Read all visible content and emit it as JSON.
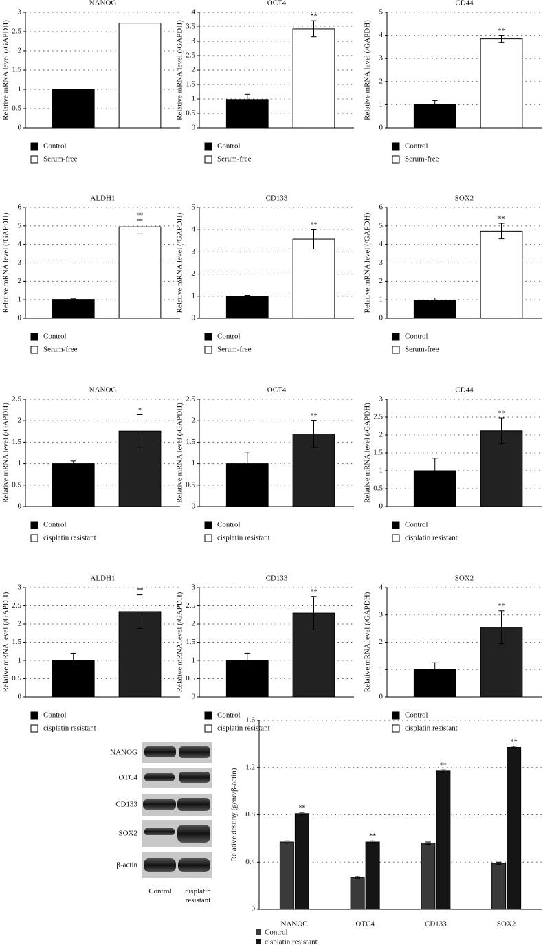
{
  "chart_data": [
    {
      "type": "bar",
      "title": "NANOG",
      "y_label": "Relative mRNA level (/GAPDH)",
      "categories": [
        null
      ],
      "ylim": [
        0,
        3
      ],
      "yticks": [
        0,
        0.5,
        1,
        1.5,
        2,
        2.5,
        3
      ],
      "grid": true,
      "legend": "bottom-left",
      "series": [
        {
          "name": "Control",
          "color": "#000000",
          "legend_color": "#000000",
          "values": [
            1
          ]
        },
        {
          "name": "Serum-free",
          "color": "#ffffff",
          "legend_color": "#ffffff",
          "values": [
            2.72
          ]
        }
      ]
    },
    {
      "type": "bar",
      "title": "OCT4",
      "y_label": "Relative mRNA level (/GAPDH)",
      "categories": [
        null
      ],
      "ylim": [
        0,
        4
      ],
      "yticks": [
        0,
        0.5,
        1,
        1.5,
        2,
        2.5,
        3,
        3.5,
        4
      ],
      "grid": true,
      "legend": "bottom-left",
      "series": [
        {
          "name": "Control",
          "color": "#000000",
          "legend_color": "#000000",
          "values": [
            0.98
          ],
          "errors": [
            0.18
          ]
        },
        {
          "name": "Serum-free",
          "color": "#ffffff",
          "legend_color": "#ffffff",
          "values": [
            3.43
          ],
          "errors": [
            0.28
          ],
          "significance": [
            "**"
          ]
        }
      ]
    },
    {
      "type": "bar",
      "title": "CD44",
      "y_label": "Relative mRNA level (/GAPDH)",
      "categories": [
        null
      ],
      "ylim": [
        0,
        5
      ],
      "yticks": [
        0,
        1,
        2,
        3,
        4,
        5
      ],
      "grid": true,
      "legend": "bottom-left",
      "series": [
        {
          "name": "Control",
          "color": "#000000",
          "legend_color": "#000000",
          "values": [
            1
          ],
          "errors": [
            0.18
          ]
        },
        {
          "name": "Serum-free",
          "color": "#ffffff",
          "legend_color": "#ffffff",
          "values": [
            3.85
          ],
          "errors": [
            0.15
          ],
          "significance": [
            "**"
          ]
        }
      ]
    },
    {
      "type": "bar",
      "title": "ALDH1",
      "y_label": "Relative mRNA level (/GAPDH)",
      "categories": [
        null
      ],
      "ylim": [
        0,
        6
      ],
      "yticks": [
        0,
        1,
        2,
        3,
        4,
        5,
        6
      ],
      "grid": true,
      "legend": "bottom-left",
      "series": [
        {
          "name": "Control",
          "color": "#000000",
          "legend_color": "#000000",
          "values": [
            1.02
          ],
          "errors": [
            0.03
          ]
        },
        {
          "name": "Serum-free",
          "color": "#ffffff",
          "legend_color": "#ffffff",
          "values": [
            4.95
          ],
          "errors": [
            0.38
          ],
          "significance": [
            "**"
          ]
        }
      ]
    },
    {
      "type": "bar",
      "title": "CD133",
      "y_label": "Relative mRNA level (/GAPDH)",
      "categories": [
        null
      ],
      "ylim": [
        0,
        5
      ],
      "yticks": [
        0,
        1,
        2,
        3,
        4,
        5
      ],
      "grid": true,
      "legend": "bottom-left",
      "series": [
        {
          "name": "Control",
          "color": "#000000",
          "legend_color": "#000000",
          "values": [
            1
          ],
          "errors": [
            0.04
          ]
        },
        {
          "name": "Serum-free",
          "color": "#ffffff",
          "legend_color": "#ffffff",
          "values": [
            3.57
          ],
          "errors": [
            0.45
          ],
          "significance": [
            "**"
          ]
        }
      ]
    },
    {
      "type": "bar",
      "title": "SOX2",
      "y_label": "Relative mRNA level (/GAPDH)",
      "categories": [
        null
      ],
      "ylim": [
        0,
        6
      ],
      "yticks": [
        0,
        1,
        2,
        3,
        4,
        5,
        6
      ],
      "grid": true,
      "legend": "bottom-left",
      "series": [
        {
          "name": "Control",
          "color": "#000000",
          "legend_color": "#000000",
          "values": [
            0.98
          ],
          "errors": [
            0.12
          ]
        },
        {
          "name": "Serum-free",
          "color": "#ffffff",
          "legend_color": "#ffffff",
          "values": [
            4.72
          ],
          "errors": [
            0.42
          ],
          "significance": [
            "**"
          ]
        }
      ]
    },
    {
      "type": "bar",
      "title": "NANOG",
      "y_label": "Relative mRNA level (/GAPDH)",
      "categories": [
        null
      ],
      "ylim": [
        0,
        2.5
      ],
      "yticks": [
        0,
        0.5,
        1,
        1.5,
        2,
        2.5
      ],
      "grid": true,
      "legend": "bottom-left",
      "series": [
        {
          "name": "Control",
          "color": "#000000",
          "legend_color": "#000000",
          "values": [
            1
          ],
          "errors": [
            0.06
          ]
        },
        {
          "name": "cisplatin resistant",
          "color": "#222222",
          "legend_color": "#ffffff",
          "values": [
            1.76
          ],
          "errors": [
            0.38
          ],
          "significance": [
            "*"
          ]
        }
      ]
    },
    {
      "type": "bar",
      "title": "OCT4",
      "y_label": "Relative mRNA level (/GAPDH)",
      "categories": [
        null
      ],
      "ylim": [
        0,
        2.5
      ],
      "yticks": [
        0,
        0.5,
        1,
        1.5,
        2,
        2.5
      ],
      "grid": true,
      "legend": "bottom-left",
      "series": [
        {
          "name": "Control",
          "color": "#000000",
          "legend_color": "#000000",
          "values": [
            1
          ],
          "errors": [
            0.27
          ]
        },
        {
          "name": "cisplatin resistant",
          "color": "#222222",
          "legend_color": "#ffffff",
          "values": [
            1.69
          ],
          "errors": [
            0.32
          ],
          "significance": [
            "**"
          ]
        }
      ]
    },
    {
      "type": "bar",
      "title": "CD44",
      "y_label": "Relative mRNA level (/GAPDH)",
      "categories": [
        null
      ],
      "ylim": [
        0,
        3
      ],
      "yticks": [
        0,
        0.5,
        1,
        1.5,
        2,
        2.5,
        3
      ],
      "grid": true,
      "legend": "bottom-left",
      "series": [
        {
          "name": "Control",
          "color": "#000000",
          "legend_color": "#000000",
          "values": [
            1
          ],
          "errors": [
            0.35
          ]
        },
        {
          "name": "cisplatin resistant",
          "color": "#222222",
          "legend_color": "#ffffff",
          "values": [
            2.12
          ],
          "errors": [
            0.36
          ],
          "significance": [
            "**"
          ]
        }
      ]
    },
    {
      "type": "bar",
      "title": "ALDH1",
      "y_label": "Relative mRNA level (/GAPDH)",
      "categories": [
        null
      ],
      "ylim": [
        0,
        3
      ],
      "yticks": [
        0,
        0.5,
        1,
        1.5,
        2,
        2.5,
        3
      ],
      "grid": true,
      "legend": "bottom-left",
      "series": [
        {
          "name": "Control",
          "color": "#000000",
          "legend_color": "#000000",
          "values": [
            1
          ],
          "errors": [
            0.2
          ]
        },
        {
          "name": "cisplatin resistant",
          "color": "#222222",
          "legend_color": "#ffffff",
          "values": [
            2.34
          ],
          "errors": [
            0.46
          ],
          "significance": [
            "**"
          ]
        }
      ]
    },
    {
      "type": "bar",
      "title": "CD133",
      "y_label": "Relative mRNA level (/GAPDH)",
      "categories": [
        null
      ],
      "ylim": [
        0,
        3
      ],
      "yticks": [
        0,
        0.5,
        1,
        1.5,
        2,
        2.5,
        3
      ],
      "grid": true,
      "legend": "bottom-left",
      "series": [
        {
          "name": "Control",
          "color": "#000000",
          "legend_color": "#000000",
          "values": [
            1
          ],
          "errors": [
            0.2
          ]
        },
        {
          "name": "cisplatin resistant",
          "color": "#222222",
          "legend_color": "#ffffff",
          "values": [
            2.3
          ],
          "errors": [
            0.46
          ],
          "significance": [
            "**"
          ]
        }
      ]
    },
    {
      "type": "bar",
      "title": "SOX2",
      "y_label": "Relative mRNA level (/GAPDH)",
      "categories": [
        null
      ],
      "ylim": [
        0,
        4
      ],
      "yticks": [
        0,
        1,
        2,
        3,
        4
      ],
      "grid": true,
      "legend": "bottom-left",
      "series": [
        {
          "name": "Control",
          "color": "#000000",
          "legend_color": "#000000",
          "values": [
            1
          ],
          "errors": [
            0.25
          ]
        },
        {
          "name": "cisplatin resistant",
          "color": "#222222",
          "legend_color": "#ffffff",
          "values": [
            2.55
          ],
          "errors": [
            0.6
          ],
          "significance": [
            "**"
          ]
        }
      ]
    },
    {
      "type": "bar",
      "y_label": "Relative destiny (gene/β-actin)",
      "categories": [
        "NANOG",
        "OTC4",
        "CD133",
        "SOX2"
      ],
      "ylim": [
        0,
        1.6
      ],
      "yticks": [
        0,
        0.4,
        0.8,
        1.2,
        1.6
      ],
      "grid": true,
      "legend": "bottom-left",
      "series": [
        {
          "name": "Control",
          "color": "#3a3a3a",
          "legend_color": "#3a3a3a",
          "values": [
            0.57,
            0.27,
            0.56,
            0.39
          ],
          "errors": [
            0.01,
            0.01,
            0.01,
            0.01
          ]
        },
        {
          "name": "cisplatin resistant",
          "color": "#151515",
          "legend_color": "#151515",
          "values": [
            0.81,
            0.57,
            1.17,
            1.37
          ],
          "errors": [
            0.01,
            0.01,
            0.01,
            0.01
          ],
          "significance": [
            "**",
            "**",
            "**",
            "**"
          ]
        }
      ]
    }
  ],
  "blot": {
    "rows": [
      "NANOG",
      "OTC4",
      "CD133",
      "SOX2",
      "β-actin"
    ],
    "columns": [
      "Control",
      "cisplatin resistant"
    ]
  }
}
